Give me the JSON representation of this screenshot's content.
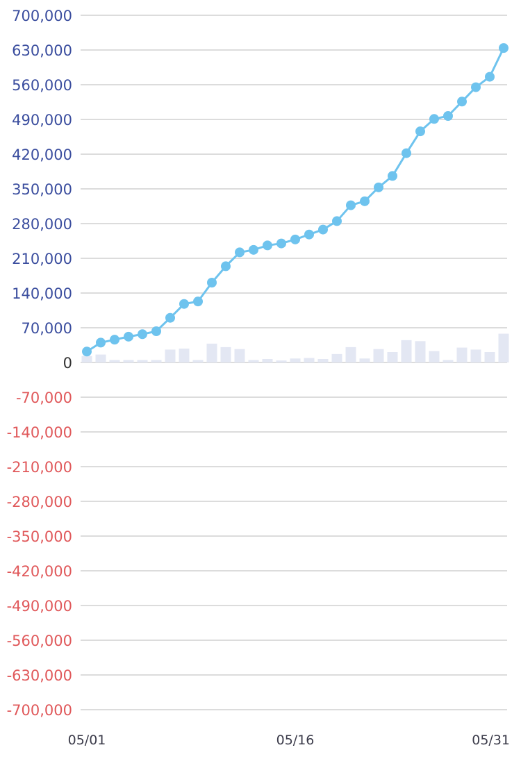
{
  "chart_data": {
    "type": "line",
    "x": [
      "05/01",
      "05/02",
      "05/03",
      "05/04",
      "05/05",
      "05/06",
      "05/07",
      "05/08",
      "05/09",
      "05/10",
      "05/11",
      "05/12",
      "05/13",
      "05/14",
      "05/15",
      "05/16",
      "05/17",
      "05/18",
      "05/19",
      "05/20",
      "05/21",
      "05/22",
      "05/23",
      "05/24",
      "05/25",
      "05/26",
      "05/27",
      "05/28",
      "05/29",
      "05/30",
      "05/31"
    ],
    "x_tick_labels": [
      "05/01",
      "05/16",
      "05/31"
    ],
    "series": [
      {
        "type": "line",
        "values": [
          22000,
          40000,
          46000,
          52000,
          57000,
          63000,
          90000,
          118000,
          123000,
          161000,
          194000,
          222000,
          227000,
          236000,
          240000,
          248000,
          258000,
          268000,
          285000,
          317000,
          325000,
          353000,
          376000,
          422000,
          466000,
          491000,
          497000,
          526000,
          555000,
          576000,
          634000
        ]
      },
      {
        "type": "bar",
        "values": [
          13000,
          16000,
          5000,
          5000,
          5000,
          5000,
          26000,
          28000,
          5000,
          38000,
          31000,
          27000,
          5000,
          7000,
          4000,
          8000,
          9000,
          7000,
          17000,
          31000,
          8000,
          27000,
          21000,
          45000,
          43000,
          23000,
          5000,
          30000,
          26000,
          21000,
          58000
        ]
      }
    ],
    "y_tick_labels": [
      "700,000",
      "630,000",
      "560,000",
      "490,000",
      "420,000",
      "350,000",
      "280,000",
      "210,000",
      "140,000",
      "70,000",
      "0",
      "-70,000",
      "-140,000",
      "-210,000",
      "-280,000",
      "-350,000",
      "-420,000",
      "-490,000",
      "-560,000",
      "-630,000",
      "-700,000"
    ],
    "ylim": [
      -700000,
      700000
    ],
    "grid": true,
    "colors": {
      "line": "#6ec3ee",
      "bar": "#e3e7f3",
      "grid": "#dcdcdc",
      "positive_tick": "#3a4d9e",
      "zero_tick": "#333333",
      "negative_tick": "#e0585a"
    }
  }
}
